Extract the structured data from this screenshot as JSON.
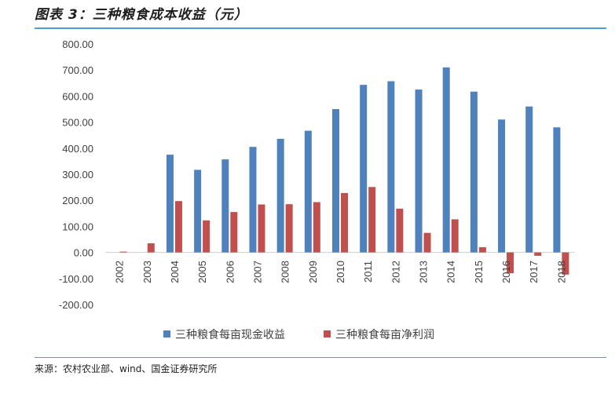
{
  "header": {
    "title": "图表 3：三种粮食成本收益（元）"
  },
  "footer": {
    "source": "来源：农村农业部、wind、国金证券研究所"
  },
  "chart_data": {
    "type": "bar",
    "categories": [
      "2002",
      "2003",
      "2004",
      "2005",
      "2006",
      "2007",
      "2008",
      "2009",
      "2010",
      "2011",
      "2012",
      "2013",
      "2014",
      "2015",
      "2016",
      "2017",
      "2018"
    ],
    "series": [
      {
        "name": "三种粮食每亩现金收益",
        "color": "#4f81bd",
        "values": [
          null,
          null,
          375,
          317,
          357,
          405,
          436,
          467,
          550,
          643,
          657,
          625,
          710,
          617,
          510,
          560,
          480
        ]
      },
      {
        "name": "三种粮食每亩净利润",
        "color": "#c0504d",
        "values": [
          3,
          35,
          197,
          123,
          155,
          184,
          185,
          193,
          228,
          251,
          168,
          75,
          127,
          20,
          -80,
          -13,
          -85
        ]
      }
    ],
    "ylim": [
      -200,
      800
    ],
    "yticks": [
      "800.00",
      "700.00",
      "600.00",
      "500.00",
      "400.00",
      "300.00",
      "200.00",
      "100.00",
      "0.00",
      "-100.00",
      "-200.00"
    ],
    "legend_position": "bottom",
    "grid": false
  }
}
